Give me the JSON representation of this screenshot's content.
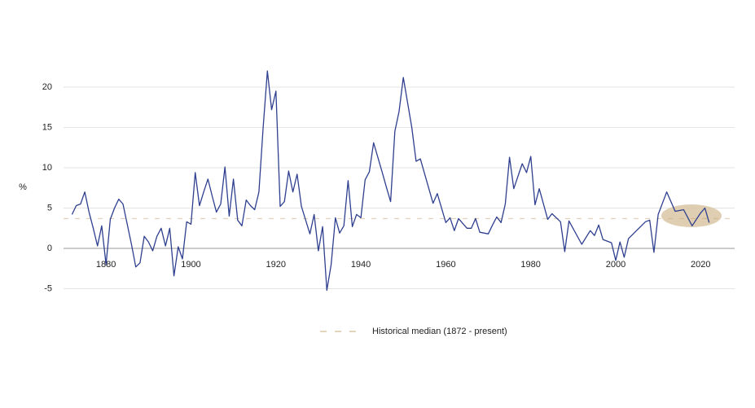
{
  "chart_data": {
    "type": "line",
    "ylabel": "%",
    "color": "#2e3f8f",
    "grid": true,
    "xlim": [
      1870,
      2028
    ],
    "ylim": [
      -6,
      23
    ],
    "xticks": [
      1880,
      1900,
      1920,
      1940,
      1960,
      1980,
      2000,
      2020
    ],
    "yticks": [
      -5,
      0,
      5,
      10,
      15,
      20
    ],
    "x": [
      1872,
      1873,
      1874,
      1875,
      1876,
      1877,
      1878,
      1879,
      1880,
      1881,
      1882,
      1883,
      1884,
      1885,
      1886,
      1887,
      1888,
      1889,
      1890,
      1891,
      1892,
      1893,
      1894,
      1895,
      1896,
      1897,
      1898,
      1899,
      1900,
      1901,
      1902,
      1903,
      1904,
      1905,
      1906,
      1907,
      1908,
      1909,
      1910,
      1911,
      1912,
      1913,
      1914,
      1915,
      1916,
      1917,
      1918,
      1919,
      1920,
      1921,
      1922,
      1923,
      1924,
      1925,
      1926,
      1927,
      1928,
      1929,
      1930,
      1931,
      1932,
      1933,
      1934,
      1935,
      1936,
      1937,
      1938,
      1939,
      1940,
      1941,
      1942,
      1943,
      1944,
      1945,
      1946,
      1947,
      1948,
      1949,
      1950,
      1952,
      1953,
      1954,
      1957,
      1958,
      1960,
      1961,
      1962,
      1963,
      1965,
      1966,
      1967,
      1968,
      1970,
      1971,
      1972,
      1973,
      1974,
      1975,
      1976,
      1978,
      1979,
      1980,
      1981,
      1982,
      1984,
      1985,
      1987,
      1988,
      1989,
      1992,
      1994,
      1995,
      1996,
      1997,
      1999,
      2000,
      2001,
      2002,
      2003,
      2007,
      2008,
      2009,
      2010,
      2012,
      2014,
      2016,
      2018,
      2020,
      2021,
      2022
    ],
    "values": [
      4.2,
      5.3,
      5.5,
      7.0,
      4.5,
      2.5,
      0.3,
      2.8,
      -2.0,
      3.6,
      5.0,
      6.1,
      5.5,
      3.0,
      0.5,
      -2.3,
      -1.8,
      1.5,
      0.8,
      -0.3,
      1.5,
      2.5,
      0.3,
      2.5,
      -3.4,
      0.2,
      -1.3,
      3.3,
      3.0,
      9.4,
      5.3,
      7.0,
      8.6,
      6.5,
      4.5,
      5.5,
      10.1,
      4.0,
      8.6,
      3.5,
      2.8,
      6.0,
      5.3,
      4.8,
      7.0,
      15.0,
      22.0,
      17.2,
      19.5,
      5.2,
      5.8,
      9.6,
      7.0,
      9.2,
      5.2,
      3.5,
      1.8,
      4.2,
      -0.3,
      2.7,
      -5.2,
      -2.0,
      3.8,
      1.9,
      2.8,
      8.4,
      2.7,
      4.2,
      3.8,
      8.5,
      9.5,
      13.1,
      11.3,
      9.5,
      7.6,
      5.8,
      14.5,
      17.0,
      21.2,
      15.0,
      10.8,
      11.1,
      5.6,
      6.8,
      3.2,
      3.8,
      2.2,
      3.7,
      2.5,
      2.5,
      3.7,
      2.0,
      1.8,
      2.9,
      3.9,
      3.2,
      5.5,
      11.3,
      7.4,
      10.5,
      9.4,
      11.4,
      5.4,
      7.4,
      3.6,
      4.3,
      3.3,
      -0.4,
      3.4,
      0.5,
      2.2,
      1.6,
      2.9,
      1.1,
      0.7,
      -1.5,
      0.8,
      -1.1,
      1.2,
      3.3,
      3.5,
      -0.5,
      4.2,
      7.0,
      4.6,
      4.8,
      2.8,
      4.4,
      5.0,
      3.2
    ],
    "median": {
      "value": 3.7,
      "label": "Historical median (1872 - present)",
      "color": "#c8a87a"
    }
  }
}
